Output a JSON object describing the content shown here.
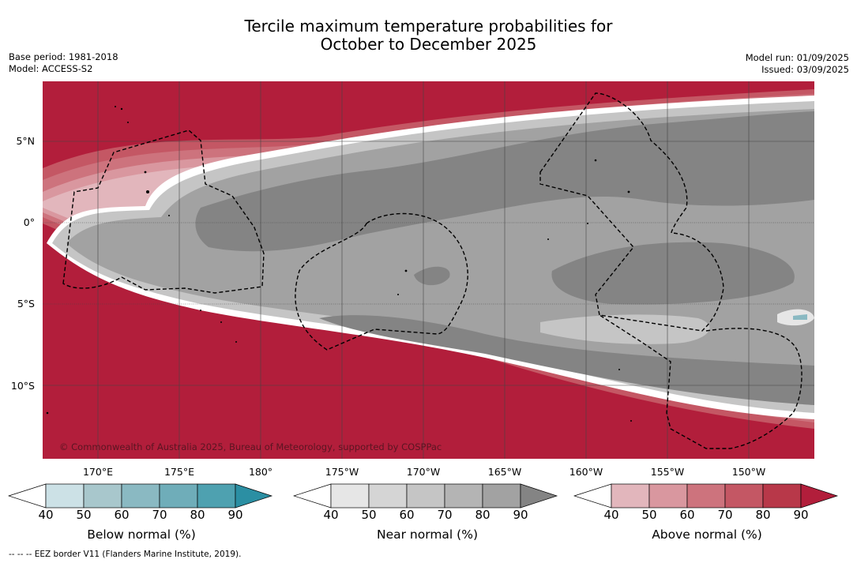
{
  "title_line1": "Tercile maximum temperature probabilities for",
  "title_line2": "October to December 2025",
  "base_period": "Base period: 1981-2018",
  "model": "Model: ACCESS-S2",
  "model_run": "Model run: 01/09/2025",
  "issued": "Issued: 03/09/2025",
  "credit": "© Commonwealth of Australia 2025, Bureau of Meteorology, supported by COSPPac",
  "lat_labels": [
    "5°N",
    "0°",
    "5°S",
    "10°S"
  ],
  "lon_labels": [
    "170°E",
    "175°E",
    "180°",
    "175°W",
    "170°W",
    "165°W",
    "160°W",
    "155°W",
    "150°W"
  ],
  "colorbars": [
    {
      "title": "Below normal (%)",
      "ticks": [
        "40",
        "50",
        "60",
        "70",
        "80",
        "90"
      ],
      "colors": [
        "#ffffff",
        "#cce1e6",
        "#a8c7cc",
        "#8ab9c2",
        "#6fadb9",
        "#4ea1b0",
        "#2b8fa3"
      ]
    },
    {
      "title": "Near normal (%)",
      "ticks": [
        "40",
        "50",
        "60",
        "70",
        "80",
        "90"
      ],
      "colors": [
        "#ffffff",
        "#e6e6e6",
        "#d5d5d5",
        "#c5c5c5",
        "#b4b4b4",
        "#a2a2a2",
        "#848484"
      ]
    },
    {
      "title": "Above normal (%)",
      "ticks": [
        "40",
        "50",
        "60",
        "70",
        "80",
        "90"
      ],
      "colors": [
        "#ffffff",
        "#e2b6bc",
        "#d9979f",
        "#cd737d",
        "#c45764",
        "#b83849",
        "#b21e3b"
      ]
    }
  ],
  "footer": "-- -- -- EEZ border V11 (Flanders Marine Institute, 2019).",
  "colors": {
    "above_max": "#b21e3b",
    "near_high": "#848484",
    "near_mid": "#a2a2a2",
    "near_low": "#c5c5c5"
  }
}
